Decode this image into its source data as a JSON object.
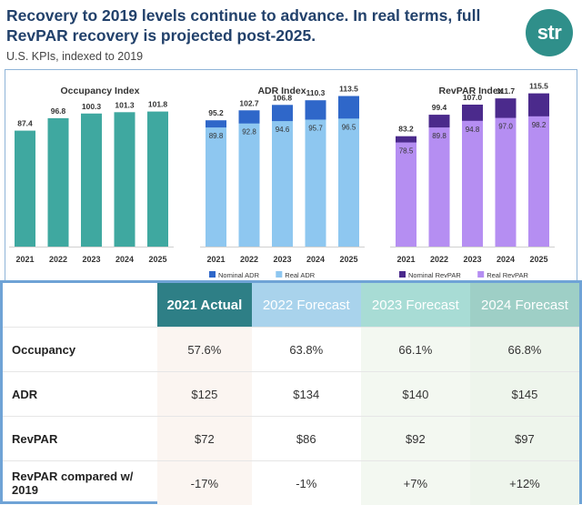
{
  "header": {
    "title": "Recovery to 2019 levels continue to advance. In real terms, full RevPAR recovery is projected post-2025.",
    "subtitle": "U.S. KPIs, indexed to 2019",
    "logo_text": "str"
  },
  "colors": {
    "occupancy": "#3fa8a0",
    "nominal_adr": "#2f67c9",
    "real_adr": "#8ec7f0",
    "nominal_revpar": "#4b2a8c",
    "real_revpar": "#b58ef2",
    "title": "#22416b"
  },
  "chart_data": [
    {
      "type": "bar",
      "title": "Occupancy Index",
      "categories": [
        "2021",
        "2022",
        "2023",
        "2024",
        "2025"
      ],
      "series": [
        {
          "values": [
            87.4,
            96.8,
            100.3,
            101.3,
            101.8
          ]
        }
      ]
    },
    {
      "type": "bar",
      "title": "ADR Index",
      "categories": [
        "2021",
        "2022",
        "2023",
        "2024",
        "2025"
      ],
      "series": [
        {
          "name": "Nominal ADR",
          "values": [
            95.2,
            102.7,
            106.8,
            110.3,
            113.5
          ]
        },
        {
          "name": "Real ADR",
          "values": [
            89.8,
            92.8,
            94.6,
            95.7,
            96.5
          ]
        }
      ],
      "legend": "bottom"
    },
    {
      "type": "bar",
      "title": "RevPAR Index",
      "categories": [
        "2021",
        "2022",
        "2023",
        "2024",
        "2025"
      ],
      "series": [
        {
          "name": "Nominal RevPAR",
          "values": [
            83.2,
            99.4,
            107.0,
            111.7,
            115.5
          ]
        },
        {
          "name": "Real RevPAR",
          "values": [
            78.5,
            89.8,
            94.8,
            97.0,
            98.2
          ]
        }
      ],
      "legend": "bottom"
    }
  ],
  "table": {
    "headers": [
      "2021 Actual",
      "2022 Forecast",
      "2023 Forecast",
      "2024 Forecast"
    ],
    "rows": [
      {
        "label": "Occupancy",
        "values": [
          "57.6%",
          "63.8%",
          "66.1%",
          "66.8%"
        ]
      },
      {
        "label": "ADR",
        "values": [
          "$125",
          "$134",
          "$140",
          "$145"
        ]
      },
      {
        "label": "RevPAR",
        "values": [
          "$72",
          "$86",
          "$92",
          "$97"
        ]
      },
      {
        "label": "RevPAR compared w/ 2019",
        "values": [
          "-17%",
          "-1%",
          "+7%",
          "+12%"
        ]
      }
    ]
  }
}
